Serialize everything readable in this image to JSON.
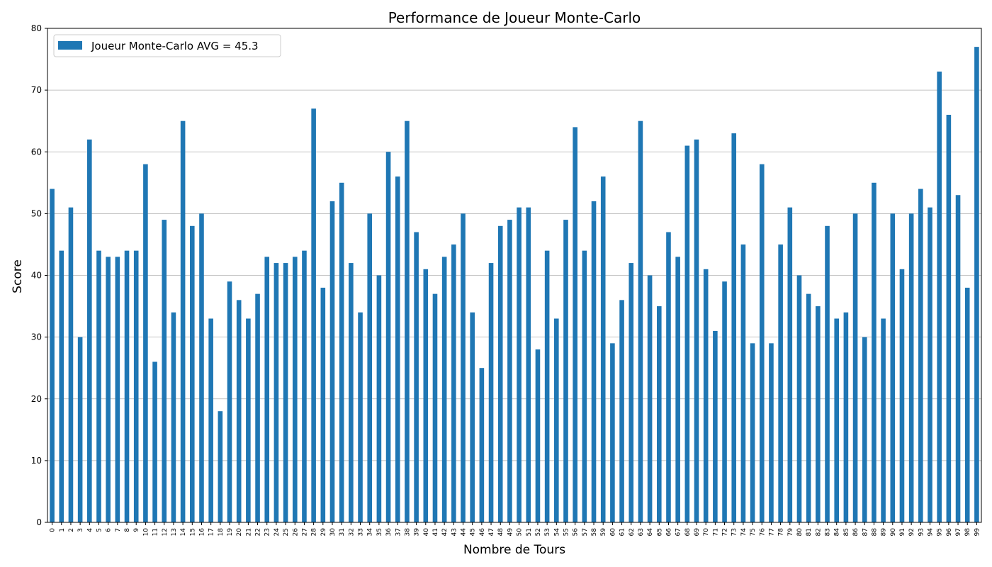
{
  "chart_data": {
    "type": "bar",
    "title": "Performance de Joueur Monte-Carlo",
    "xlabel": "Nombre de Tours",
    "ylabel": "Score",
    "ylim": [
      0,
      80
    ],
    "yticks": [
      0,
      10,
      20,
      30,
      40,
      50,
      60,
      70,
      80
    ],
    "grid": "y",
    "legend_position": "top-left",
    "bar_color": "#1f77b4",
    "categories": [
      "0",
      "1",
      "2",
      "3",
      "4",
      "5",
      "6",
      "7",
      "8",
      "9",
      "10",
      "11",
      "12",
      "13",
      "14",
      "15",
      "16",
      "17",
      "18",
      "19",
      "20",
      "21",
      "22",
      "23",
      "24",
      "25",
      "26",
      "27",
      "28",
      "29",
      "30",
      "31",
      "32",
      "33",
      "34",
      "35",
      "36",
      "37",
      "38",
      "39",
      "40",
      "41",
      "42",
      "43",
      "44",
      "45",
      "46",
      "47",
      "48",
      "49",
      "50",
      "51",
      "52",
      "53",
      "54",
      "55",
      "56",
      "57",
      "58",
      "59",
      "60",
      "61",
      "62",
      "63",
      "64",
      "65",
      "66",
      "67",
      "68",
      "69",
      "70",
      "71",
      "72",
      "73",
      "74",
      "75",
      "76",
      "77",
      "78",
      "79",
      "80",
      "81",
      "82",
      "83",
      "84",
      "85",
      "86",
      "87",
      "88",
      "89",
      "90",
      "91",
      "92",
      "93",
      "94",
      "95",
      "96",
      "97",
      "98",
      "99"
    ],
    "series": [
      {
        "name": "Joueur Monte-Carlo AVG = 45.3",
        "values": [
          54,
          44,
          51,
          30,
          62,
          44,
          43,
          43,
          44,
          44,
          58,
          26,
          49,
          34,
          65,
          48,
          50,
          33,
          18,
          39,
          36,
          33,
          37,
          43,
          42,
          42,
          43,
          44,
          67,
          38,
          52,
          55,
          42,
          34,
          50,
          40,
          60,
          56,
          65,
          47,
          41,
          37,
          43,
          45,
          50,
          34,
          25,
          42,
          48,
          49,
          51,
          51,
          28,
          44,
          33,
          49,
          64,
          44,
          52,
          56,
          29,
          36,
          42,
          65,
          40,
          35,
          47,
          43,
          61,
          62,
          41,
          31,
          39,
          63,
          45,
          29,
          58,
          29,
          45,
          51,
          40,
          37,
          35,
          48,
          33,
          34,
          50,
          30,
          55,
          33,
          50,
          41,
          50,
          54,
          51,
          73,
          66,
          53,
          38,
          77
        ]
      }
    ]
  }
}
